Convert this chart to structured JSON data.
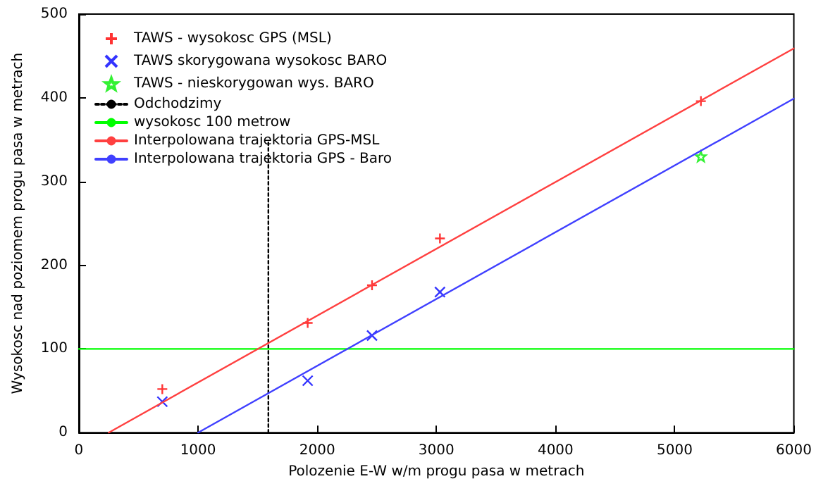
{
  "chart_data": {
    "type": "scatter",
    "xlabel": "Polozenie E-W w/m progu pasa w metrach",
    "ylabel": "Wysokosc nad poziomem progu pasa w metrach",
    "xlim": [
      0,
      6000
    ],
    "xticks": [
      0,
      1000,
      2000,
      3000,
      4000,
      5000,
      6000
    ],
    "ylim": [
      0,
      500
    ],
    "yticks": [
      0,
      100,
      200,
      300,
      400,
      500
    ],
    "grid": false,
    "legend": "top left",
    "series": [
      {
        "name": "TAWS - wysokosc GPS (MSL)",
        "marker": "plus",
        "color": "#ff0000",
        "x": [
          700,
          1920,
          2460,
          3030,
          5220
        ],
        "values": [
          52,
          131,
          176,
          232,
          396
        ]
      },
      {
        "name": "TAWS skorygowana wysokosc BARO",
        "marker": "cross",
        "color": "#0000ff",
        "x": [
          700,
          1920,
          2460,
          3030
        ],
        "values": [
          37,
          62,
          116,
          168
        ]
      },
      {
        "name": "TAWS - nieskorygowan wys. BARO",
        "marker": "star",
        "color": "#00ee00",
        "x": [
          5220
        ],
        "values": [
          330
        ]
      },
      {
        "name": "Odchodzimy",
        "type": "line",
        "line_style": "dotted",
        "color": "#000000",
        "x": [
          1590,
          1590
        ],
        "values": [
          0,
          350
        ]
      },
      {
        "name": "wysokosc 100 metrow",
        "type": "line",
        "line_style": "solid",
        "color": "#00ff00",
        "x": [
          0,
          6000
        ],
        "values": [
          100,
          100
        ]
      },
      {
        "name": "Interpolowana trajektoria GPS-MSL",
        "type": "line",
        "line_style": "solid",
        "color": "#ff4040",
        "x": [
          250,
          6000
        ],
        "values": [
          0,
          459
        ]
      },
      {
        "name": "Interpolowana trajektoria GPS - Baro",
        "type": "line",
        "line_style": "solid",
        "color": "#4040ff",
        "x": [
          1000,
          6000
        ],
        "values": [
          0,
          399
        ]
      }
    ]
  }
}
